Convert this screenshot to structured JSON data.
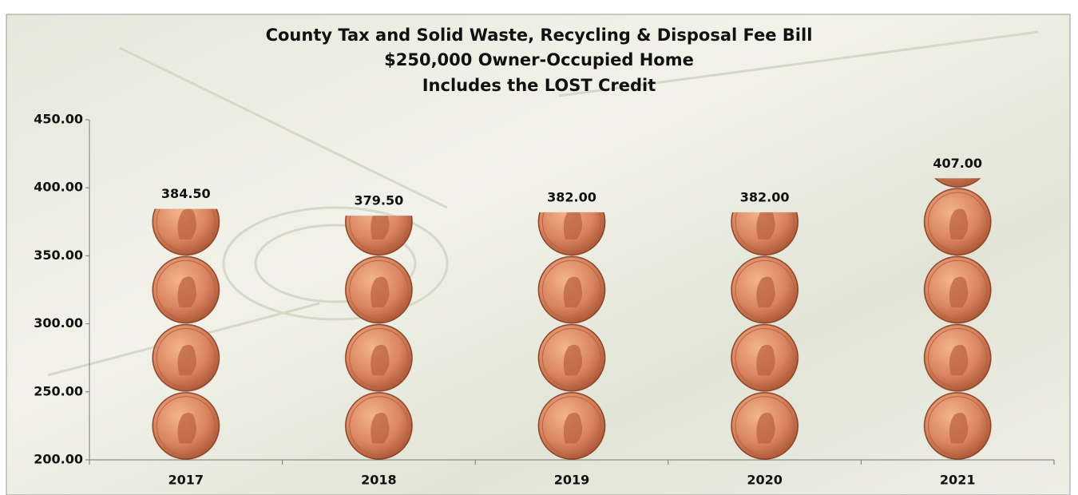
{
  "chart_data": {
    "type": "pictograph",
    "title": [
      "County Tax and Solid Waste, Recycling & Disposal Fee Bill",
      "$250,000 Owner-Occupied Home",
      "Includes the  LOST Credit"
    ],
    "categories": [
      "2017",
      "2018",
      "2019",
      "2020",
      "2021"
    ],
    "values": [
      384.5,
      379.5,
      382,
      382,
      407
    ],
    "value_labels": [
      "384.50",
      "379.50",
      "382.00",
      "382.00",
      "407.00"
    ],
    "ylim": [
      200,
      450
    ],
    "yticks": [
      {
        "value": 200,
        "label": "200.00"
      },
      {
        "value": 250,
        "label": "250.00"
      },
      {
        "value": 300,
        "label": "300.00"
      },
      {
        "value": 350,
        "label": "350.00"
      },
      {
        "value": 400,
        "label": "400.00"
      },
      {
        "value": 450,
        "label": "450.00"
      }
    ],
    "color": "#c9774a"
  }
}
